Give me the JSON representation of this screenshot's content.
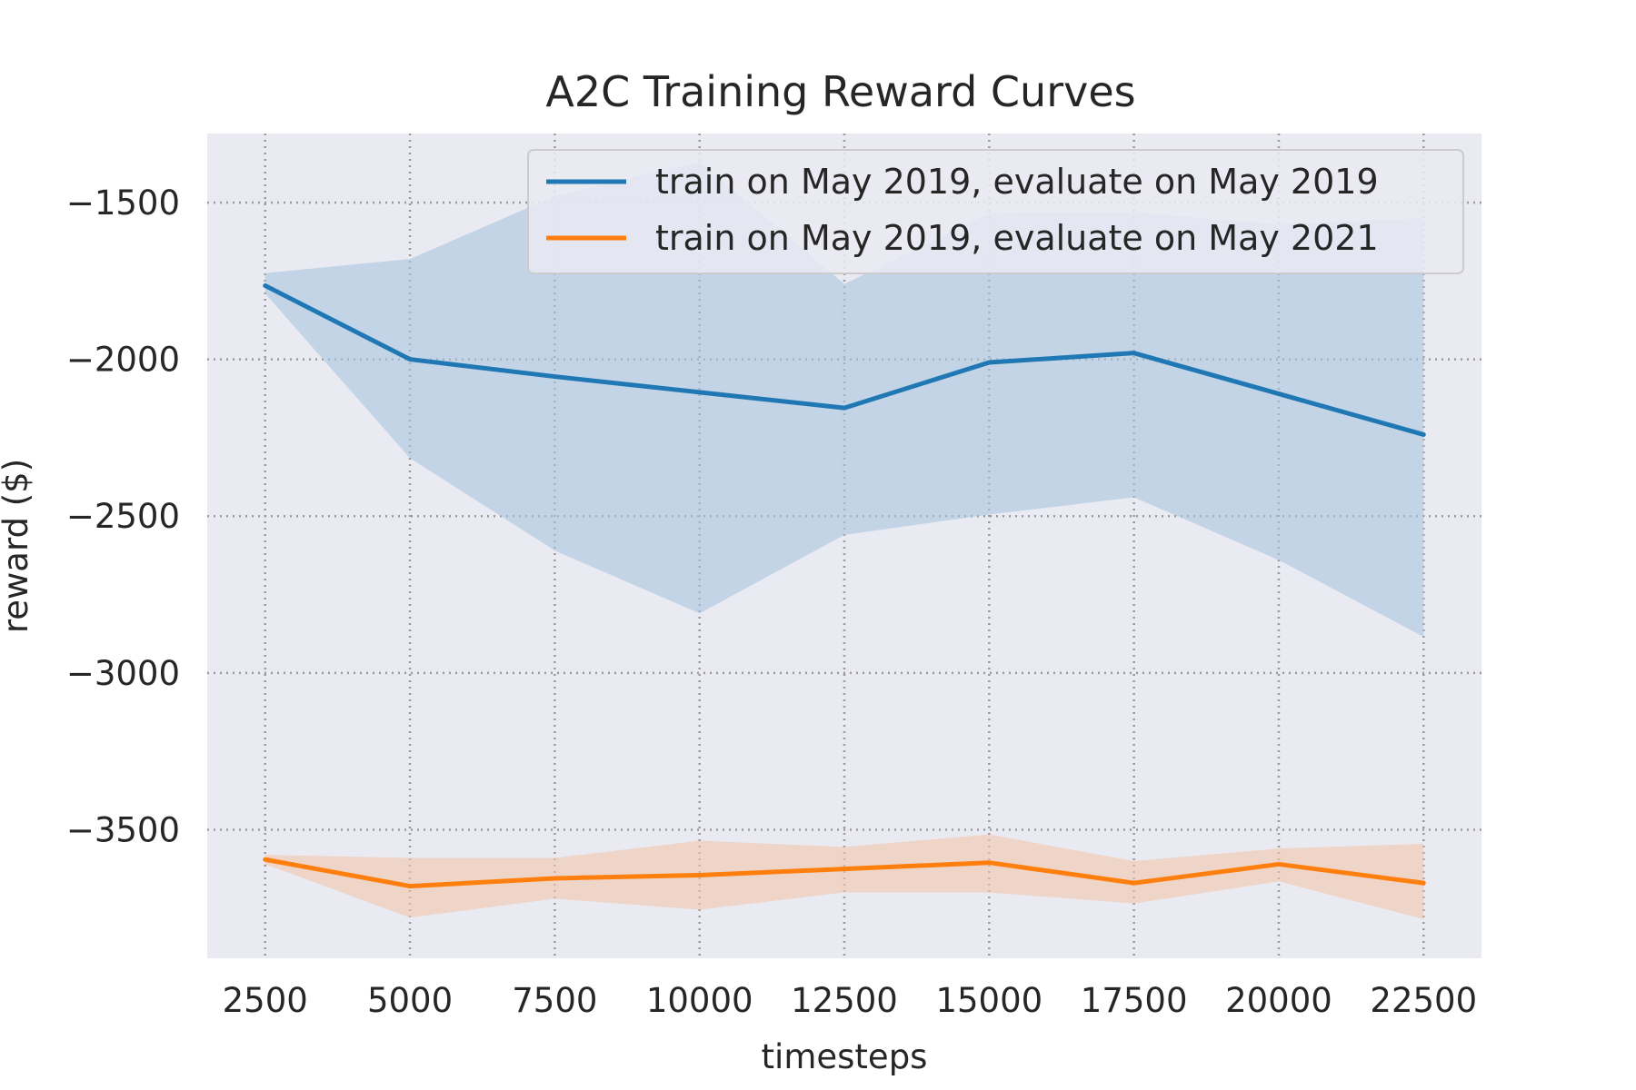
{
  "chart_data": {
    "type": "line",
    "title": "A2C Training Reward Curves",
    "xlabel": "timesteps",
    "ylabel": "reward ($)",
    "xlim": [
      1500,
      23500
    ],
    "ylim": [
      -3910,
      -1280
    ],
    "x_ticks": [
      2500,
      5000,
      7500,
      10000,
      12500,
      15000,
      17500,
      20000,
      22500
    ],
    "x_tick_labels": [
      "2500",
      "5000",
      "7500",
      "10000",
      "12500",
      "15000",
      "17500",
      "20000",
      "22500"
    ],
    "y_ticks": [
      -3500,
      -3000,
      -2500,
      -2000,
      -1500
    ],
    "y_tick_labels": [
      "−3500",
      "−3000",
      "−2500",
      "−2000",
      "−1500"
    ],
    "grid": true,
    "legend_position": "top-right",
    "x": [
      2500,
      5000,
      7500,
      10000,
      12500,
      15000,
      17500,
      20000,
      22500
    ],
    "series": [
      {
        "name": "train on May 2019, evaluate on May 2019",
        "color": "#1f77b4",
        "band_color": "#a8c4df",
        "values": [
          -1765,
          -2000,
          -2055,
          -2105,
          -2155,
          -2010,
          -1980,
          -2110,
          -2240
        ],
        "lower": [
          -1790,
          -2315,
          -2610,
          -2810,
          -2560,
          -2495,
          -2440,
          -2640,
          -2885
        ],
        "upper": [
          -1725,
          -1680,
          -1480,
          -1370,
          -1760,
          -1535,
          -1530,
          -1570,
          -1550
        ]
      },
      {
        "name": "train on May 2019, evaluate on May 2021",
        "color": "#ff7f0e",
        "band_color": "#f2c4ac",
        "values": [
          -3595,
          -3680,
          -3655,
          -3645,
          -3625,
          -3605,
          -3670,
          -3610,
          -3670
        ],
        "lower": [
          -3610,
          -3780,
          -3720,
          -3755,
          -3700,
          -3700,
          -3735,
          -3665,
          -3785
        ],
        "upper": [
          -3580,
          -3590,
          -3590,
          -3535,
          -3555,
          -3515,
          -3600,
          -3560,
          -3545
        ]
      }
    ]
  }
}
